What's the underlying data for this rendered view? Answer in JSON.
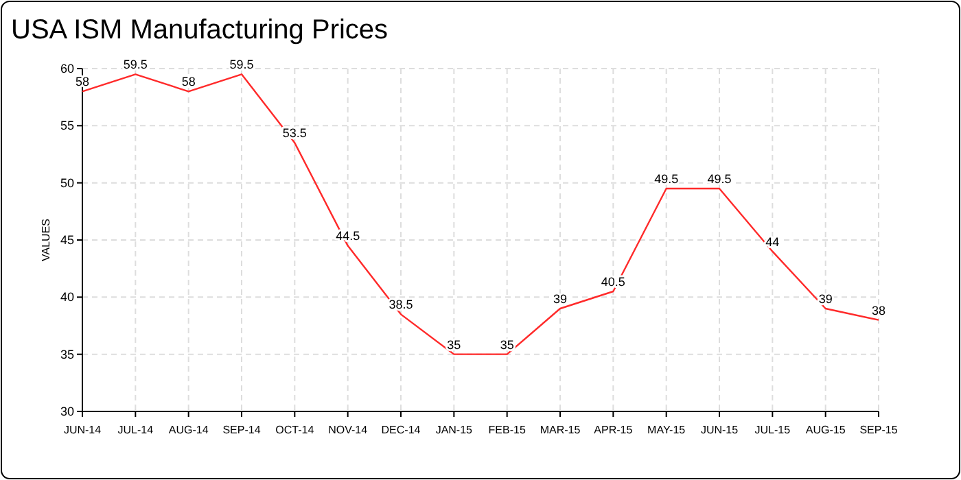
{
  "chart_data": {
    "type": "line",
    "title": "USA ISM Manufacturing Prices",
    "ylabel": "VALUES",
    "categories": [
      "JUN-14",
      "JUL-14",
      "AUG-14",
      "SEP-14",
      "OCT-14",
      "NOV-14",
      "DEC-14",
      "JAN-15",
      "FEB-15",
      "MAR-15",
      "APR-15",
      "MAY-15",
      "JUN-15",
      "JUL-15",
      "AUG-15",
      "SEP-15"
    ],
    "series": [
      {
        "color": "#ff2a2a",
        "values": [
          58,
          59.5,
          58,
          59.5,
          53.5,
          44.5,
          38.5,
          35,
          35,
          39,
          40.5,
          49.5,
          49.5,
          44,
          39,
          38
        ]
      }
    ],
    "ylim": [
      30,
      60
    ],
    "yticks": [
      30,
      35,
      40,
      45,
      50,
      55,
      60
    ],
    "grid": true,
    "data_labels": true,
    "marker": "none",
    "line_style": "solid"
  }
}
